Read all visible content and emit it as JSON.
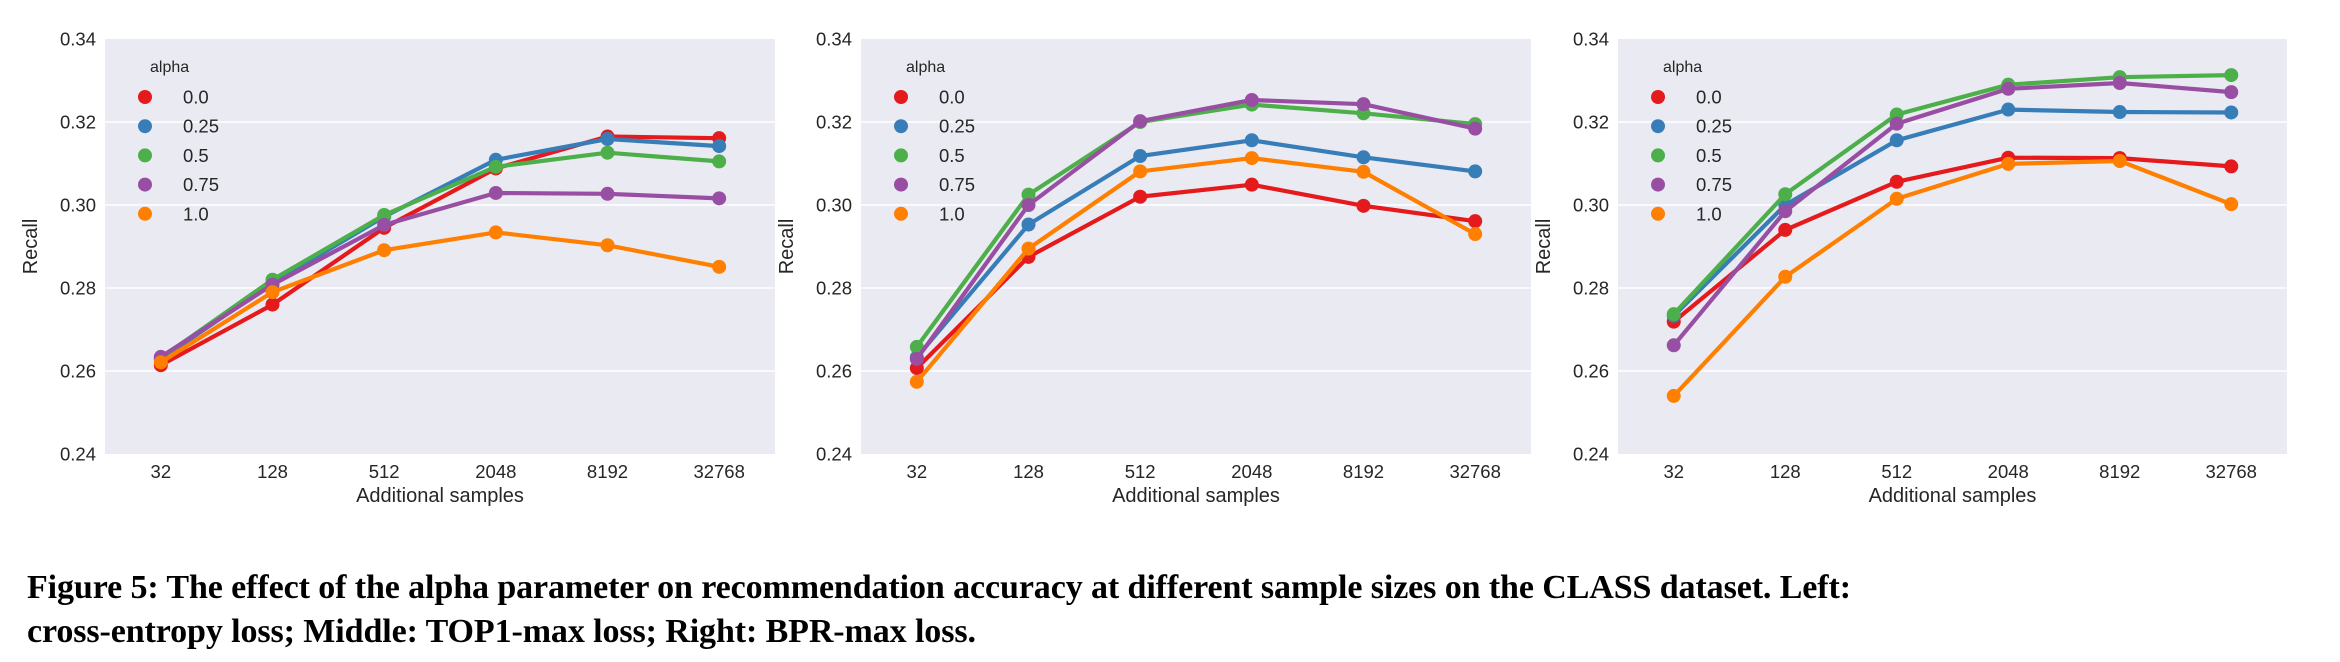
{
  "figure": {
    "caption_line1": "Figure 5: The effect of the alpha parameter on recommendation accuracy at different sample sizes on the CLASS dataset. Left:",
    "caption_line2": "cross-entropy loss; Middle: TOP1-max loss; Right: BPR-max loss."
  },
  "palette": {
    "plot_background": "#eaeaf2",
    "grid": "#ffffff",
    "text": "#262626"
  },
  "chart_data": [
    {
      "type": "line",
      "panel": "left",
      "title": "",
      "subtitle": "cross-entropy loss",
      "xlabel": "Additional samples",
      "ylabel": "Recall",
      "categories": [
        "32",
        "128",
        "512",
        "2048",
        "8192",
        "32768"
      ],
      "yticks": [
        "0.24",
        "0.26",
        "0.28",
        "0.30",
        "0.32",
        "0.34"
      ],
      "ylim": [
        0.24,
        0.34
      ],
      "grid": true,
      "legend": {
        "title": "alpha",
        "placement": "upper-left"
      },
      "series": [
        {
          "name": "0.0",
          "color": "#e41a1c",
          "values": [
            0.2614,
            0.276,
            0.2945,
            0.3088,
            0.3165,
            0.3161
          ]
        },
        {
          "name": "0.25",
          "color": "#377eb8",
          "values": [
            0.2629,
            0.2812,
            0.2972,
            0.3109,
            0.3159,
            0.3142
          ]
        },
        {
          "name": "0.5",
          "color": "#4daf4a",
          "values": [
            0.2631,
            0.282,
            0.2976,
            0.3092,
            0.3126,
            0.3105
          ]
        },
        {
          "name": "0.75",
          "color": "#984ea3",
          "values": [
            0.2634,
            0.2808,
            0.2952,
            0.3029,
            0.3027,
            0.3016
          ]
        },
        {
          "name": "1.0",
          "color": "#ff7f00",
          "values": [
            0.2621,
            0.279,
            0.2891,
            0.2934,
            0.2903,
            0.2851
          ]
        }
      ]
    },
    {
      "type": "line",
      "panel": "middle",
      "title": "",
      "subtitle": "TOP1-max loss",
      "xlabel": "Additional samples",
      "ylabel": "Recall",
      "categories": [
        "32",
        "128",
        "512",
        "2048",
        "8192",
        "32768"
      ],
      "yticks": [
        "0.24",
        "0.26",
        "0.28",
        "0.30",
        "0.32",
        "0.34"
      ],
      "ylim": [
        0.24,
        0.34
      ],
      "grid": true,
      "legend": {
        "title": "alpha",
        "placement": "upper-left"
      },
      "series": [
        {
          "name": "0.0",
          "color": "#e41a1c",
          "values": [
            0.2607,
            0.2875,
            0.302,
            0.3049,
            0.2998,
            0.2961
          ]
        },
        {
          "name": "0.25",
          "color": "#377eb8",
          "values": [
            0.2633,
            0.2953,
            0.3118,
            0.3156,
            0.3115,
            0.3081
          ]
        },
        {
          "name": "0.5",
          "color": "#4daf4a",
          "values": [
            0.2658,
            0.3025,
            0.32,
            0.3242,
            0.3221,
            0.3195
          ]
        },
        {
          "name": "0.75",
          "color": "#984ea3",
          "values": [
            0.2629,
            0.3,
            0.3202,
            0.3253,
            0.3243,
            0.3184
          ]
        },
        {
          "name": "1.0",
          "color": "#ff7f00",
          "values": [
            0.2574,
            0.2895,
            0.3081,
            0.3113,
            0.308,
            0.293
          ]
        }
      ]
    },
    {
      "type": "line",
      "panel": "right",
      "title": "",
      "subtitle": "BPR-max loss",
      "xlabel": "Additional samples",
      "ylabel": "Recall",
      "categories": [
        "32",
        "128",
        "512",
        "2048",
        "8192",
        "32768"
      ],
      "yticks": [
        "0.24",
        "0.26",
        "0.28",
        "0.30",
        "0.32",
        "0.34"
      ],
      "ylim": [
        0.24,
        0.34
      ],
      "grid": true,
      "legend": {
        "title": "alpha",
        "placement": "upper-left"
      },
      "series": [
        {
          "name": "0.0",
          "color": "#e41a1c",
          "values": [
            0.2719,
            0.294,
            0.3056,
            0.3114,
            0.3113,
            0.3093
          ]
        },
        {
          "name": "0.25",
          "color": "#377eb8",
          "values": [
            0.2733,
            0.3,
            0.3156,
            0.323,
            0.3224,
            0.3223
          ]
        },
        {
          "name": "0.5",
          "color": "#4daf4a",
          "values": [
            0.2737,
            0.3026,
            0.3218,
            0.329,
            0.3308,
            0.3313
          ]
        },
        {
          "name": "0.75",
          "color": "#984ea3",
          "values": [
            0.2662,
            0.2985,
            0.3196,
            0.328,
            0.3294,
            0.3272
          ]
        },
        {
          "name": "1.0",
          "color": "#ff7f00",
          "values": [
            0.254,
            0.2827,
            0.3015,
            0.3099,
            0.3106,
            0.3002
          ]
        }
      ]
    }
  ]
}
